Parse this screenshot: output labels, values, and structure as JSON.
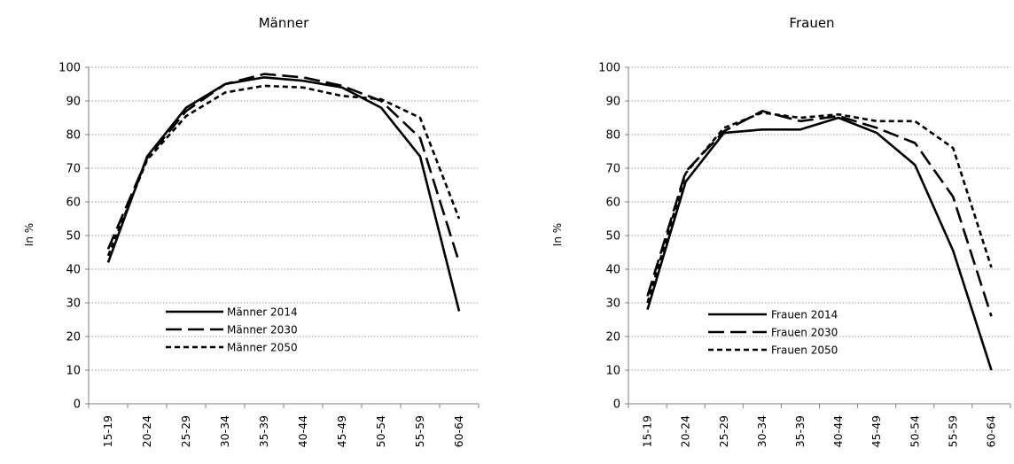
{
  "chart_data": [
    {
      "type": "line",
      "title": "Männer",
      "xlabel": "",
      "ylabel": "In %",
      "ylim": [
        0,
        100
      ],
      "yticks": [
        0,
        10,
        20,
        30,
        40,
        50,
        60,
        70,
        80,
        90,
        100
      ],
      "grid": true,
      "legend_position": "bottom-left",
      "categories": [
        "15-19",
        "20-24",
        "25-29",
        "30-34",
        "35-39",
        "40-44",
        "45-49",
        "50-54",
        "55-59",
        "60-64"
      ],
      "series": [
        {
          "name": "Männer 2014",
          "style": "solid",
          "color": "#000000",
          "values": [
            42,
            73.5,
            88,
            95,
            97,
            96,
            94,
            88,
            73.5,
            27.5
          ]
        },
        {
          "name": "Männer 2030",
          "style": "long-dash",
          "color": "#000000",
          "values": [
            46,
            73,
            87,
            95,
            98,
            97,
            94.5,
            90,
            79,
            42
          ]
        },
        {
          "name": "Männer 2050",
          "style": "short-dash",
          "color": "#000000",
          "values": [
            44,
            72.5,
            85.5,
            92.5,
            94.5,
            94,
            91.5,
            90.5,
            85,
            55
          ]
        }
      ]
    },
    {
      "type": "line",
      "title": "Frauen",
      "xlabel": "",
      "ylabel": "In %",
      "ylim": [
        0,
        100
      ],
      "yticks": [
        0,
        10,
        20,
        30,
        40,
        50,
        60,
        70,
        80,
        90,
        100
      ],
      "grid": true,
      "legend_position": "bottom-left",
      "categories": [
        "15-19",
        "20-24",
        "25-29",
        "30-34",
        "35-39",
        "40-44",
        "45-49",
        "50-54",
        "55-59",
        "60-64"
      ],
      "series": [
        {
          "name": "Frauen 2014",
          "style": "solid",
          "color": "#000000",
          "values": [
            28,
            66,
            80.5,
            81.5,
            81.5,
            85,
            80.5,
            71,
            45.5,
            10
          ]
        },
        {
          "name": "Frauen 2030",
          "style": "long-dash",
          "color": "#000000",
          "values": [
            32,
            69,
            81,
            87,
            84,
            85.5,
            82,
            77.5,
            61.5,
            26
          ]
        },
        {
          "name": "Frauen 2050",
          "style": "short-dash",
          "color": "#000000",
          "values": [
            30,
            68.5,
            82,
            86.5,
            85,
            86,
            84,
            84,
            76,
            40.5
          ]
        }
      ]
    }
  ]
}
